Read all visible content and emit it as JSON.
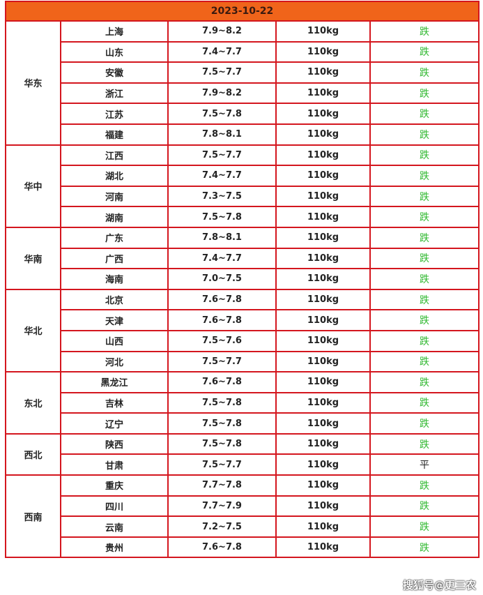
{
  "header": {
    "date": "2023-10-22"
  },
  "colors": {
    "border": "#d4161e",
    "header_bg": "#f0641a",
    "fall": "#2fb82f",
    "flat": "#222222"
  },
  "regions": [
    {
      "name": "华东",
      "rows": [
        [
          "上海",
          "7.9~8.2",
          "110kg",
          "跌"
        ],
        [
          "山东",
          "7.4~7.7",
          "110kg",
          "跌"
        ],
        [
          "安徽",
          "7.5~7.7",
          "110kg",
          "跌"
        ],
        [
          "浙江",
          "7.9~8.2",
          "110kg",
          "跌"
        ],
        [
          "江苏",
          "7.5~7.8",
          "110kg",
          "跌"
        ],
        [
          "福建",
          "7.8~8.1",
          "110kg",
          "跌"
        ]
      ]
    },
    {
      "name": "华中",
      "rows": [
        [
          "江西",
          "7.5~7.7",
          "110kg",
          "跌"
        ],
        [
          "湖北",
          "7.4~7.7",
          "110kg",
          "跌"
        ],
        [
          "河南",
          "7.3~7.5",
          "110kg",
          "跌"
        ],
        [
          "湖南",
          "7.5~7.8",
          "110kg",
          "跌"
        ]
      ]
    },
    {
      "name": "华南",
      "rows": [
        [
          "广东",
          "7.8~8.1",
          "110kg",
          "跌"
        ],
        [
          "广西",
          "7.4~7.7",
          "110kg",
          "跌"
        ],
        [
          "海南",
          "7.0~7.5",
          "110kg",
          "跌"
        ]
      ]
    },
    {
      "name": "华北",
      "rows": [
        [
          "北京",
          "7.6~7.8",
          "110kg",
          "跌"
        ],
        [
          "天津",
          "7.6~7.8",
          "110kg",
          "跌"
        ],
        [
          "山西",
          "7.5~7.6",
          "110kg",
          "跌"
        ],
        [
          "河北",
          "7.5~7.7",
          "110kg",
          "跌"
        ]
      ]
    },
    {
      "name": "东北",
      "rows": [
        [
          "黑龙江",
          "7.6~7.8",
          "110kg",
          "跌"
        ],
        [
          "吉林",
          "7.5~7.8",
          "110kg",
          "跌"
        ],
        [
          "辽宁",
          "7.5~7.8",
          "110kg",
          "跌"
        ]
      ]
    },
    {
      "name": "西北",
      "rows": [
        [
          "陕西",
          "7.5~7.8",
          "110kg",
          "跌"
        ],
        [
          "甘肃",
          "7.5~7.7",
          "110kg",
          "平"
        ]
      ]
    },
    {
      "name": "西南",
      "rows": [
        [
          "重庆",
          "7.7~7.8",
          "110kg",
          "跌"
        ],
        [
          "四川",
          "7.7~7.9",
          "110kg",
          "跌"
        ],
        [
          "云南",
          "7.2~7.5",
          "110kg",
          "跌"
        ],
        [
          "贵州",
          "7.6~7.8",
          "110kg",
          "跌"
        ]
      ]
    }
  ],
  "watermark": "搜狐号@更三农"
}
